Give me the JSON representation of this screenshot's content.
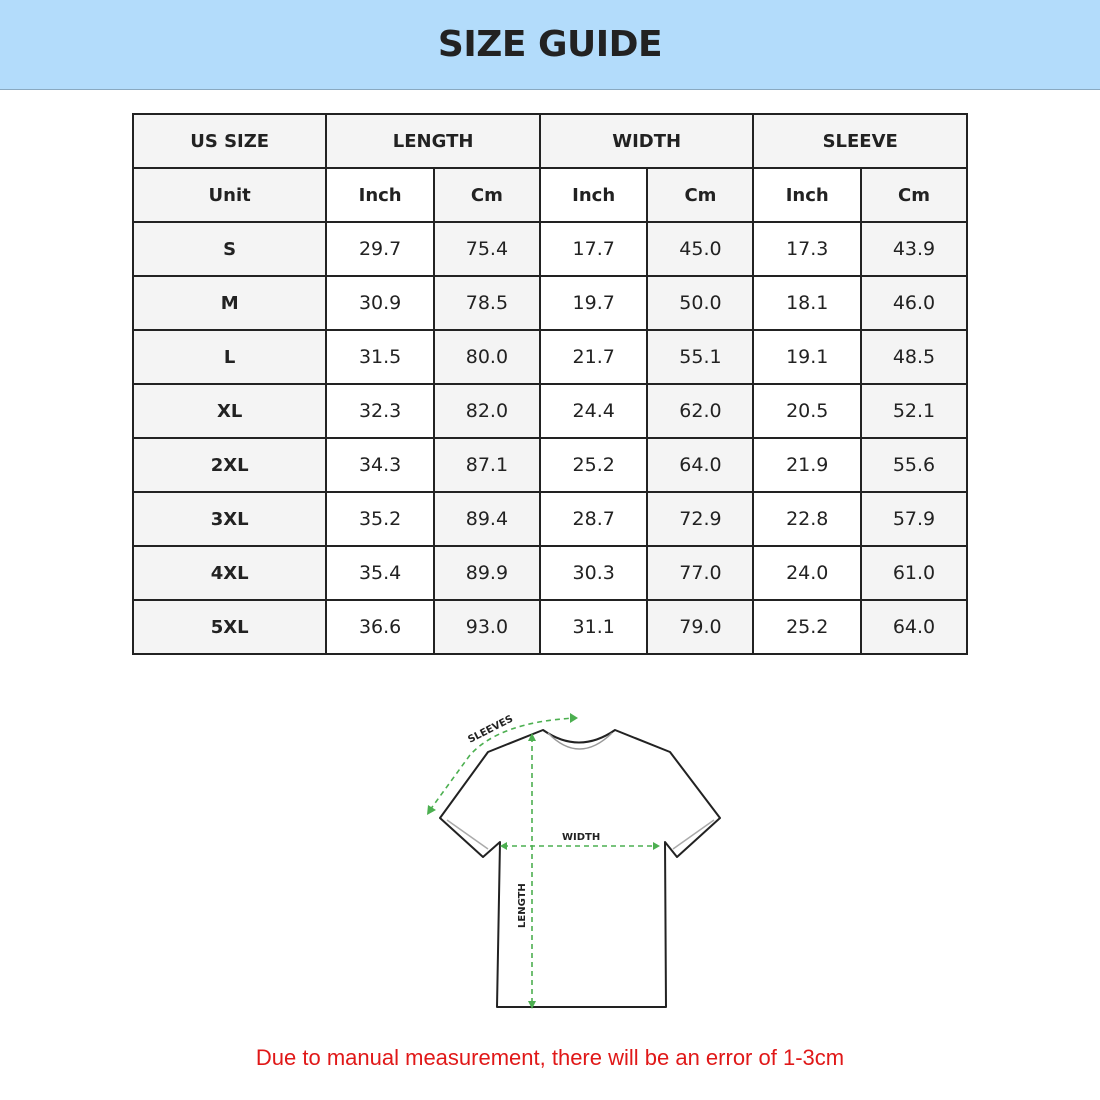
{
  "header": {
    "title": "SIZE GUIDE"
  },
  "table": {
    "group_headers": [
      "US SIZE",
      "LENGTH",
      "WIDTH",
      "SLEEVE"
    ],
    "unit_row": [
      "Unit",
      "Inch",
      "Cm",
      "Inch",
      "Cm",
      "Inch",
      "Cm"
    ],
    "rows": [
      [
        "S",
        "29.7",
        "75.4",
        "17.7",
        "45.0",
        "17.3",
        "43.9"
      ],
      [
        "M",
        "30.9",
        "78.5",
        "19.7",
        "50.0",
        "18.1",
        "46.0"
      ],
      [
        "L",
        "31.5",
        "80.0",
        "21.7",
        "55.1",
        "19.1",
        "48.5"
      ],
      [
        "XL",
        "32.3",
        "82.0",
        "24.4",
        "62.0",
        "20.5",
        "52.1"
      ],
      [
        "2XL",
        "34.3",
        "87.1",
        "25.2",
        "64.0",
        "21.9",
        "55.6"
      ],
      [
        "3XL",
        "35.2",
        "89.4",
        "28.7",
        "72.9",
        "22.8",
        "57.9"
      ],
      [
        "4XL",
        "35.4",
        "89.9",
        "30.3",
        "77.0",
        "24.0",
        "61.0"
      ],
      [
        "5XL",
        "36.6",
        "93.0",
        "31.1",
        "79.0",
        "25.2",
        "64.0"
      ]
    ]
  },
  "diagram": {
    "sleeves_label": "SLEEVES",
    "width_label": "WIDTH",
    "length_label": "LENGTH",
    "guide_color": "#4caf50"
  },
  "note": "Due to manual measurement, there will be an error of 1-3cm",
  "colors": {
    "header_bg": "#b3dcfb",
    "note": "#e01818"
  }
}
